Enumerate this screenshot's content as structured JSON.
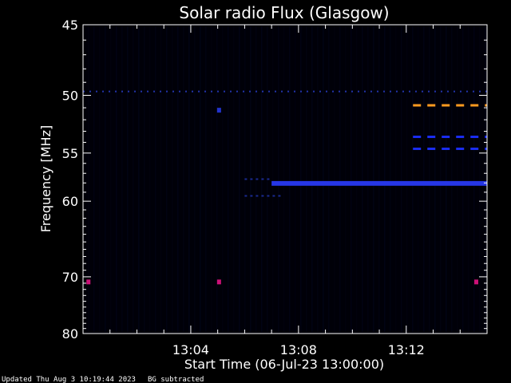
{
  "chart_data": {
    "type": "heatmap",
    "title": "Solar radio Flux (Glasgow)",
    "xlabel": "Start Time (06-Jul-23 13:00:00)",
    "ylabel": "Frequency [MHz]",
    "x_ticks": [
      "13:04",
      "13:08",
      "13:12"
    ],
    "x_tick_minutes": [
      4,
      8,
      12
    ],
    "xlim_minutes": [
      0,
      15
    ],
    "y_ticks": [
      45,
      50,
      55,
      60,
      70,
      80
    ],
    "ylim": [
      45,
      80
    ],
    "y_scale": "reciprocal",
    "features": [
      {
        "kind": "dotted-line",
        "freq": 49.7,
        "from_min": 0,
        "to_min": 15,
        "color": "#2233aa"
      },
      {
        "kind": "dashed-line",
        "freq": 50.8,
        "from_min": 12.25,
        "to_min": 15,
        "color": "#ff9a1f"
      },
      {
        "kind": "dashed-line",
        "freq": 53.5,
        "from_min": 12.25,
        "to_min": 15,
        "color": "#1a2cf0"
      },
      {
        "kind": "dashed-line",
        "freq": 54.6,
        "from_min": 12.25,
        "to_min": 15,
        "color": "#1a2cf0"
      },
      {
        "kind": "band",
        "freq": 57.8,
        "freq_end": 58.3,
        "from_min": 7.0,
        "to_min": 15,
        "color": "#2a3cff"
      },
      {
        "kind": "faint-line",
        "freq": 59.4,
        "from_min": 6.0,
        "to_min": 7.4,
        "color": "#1a2a90"
      },
      {
        "kind": "faint-line",
        "freq": 57.6,
        "from_min": 6.0,
        "to_min": 7.0,
        "color": "#1a2a90"
      },
      {
        "kind": "dot",
        "freq": 70.8,
        "at_min": 0.2,
        "color": "#cc1177"
      },
      {
        "kind": "dot",
        "freq": 70.8,
        "at_min": 5.05,
        "color": "#cc1177"
      },
      {
        "kind": "dot",
        "freq": 70.8,
        "at_min": 14.6,
        "color": "#cc1177"
      },
      {
        "kind": "dot",
        "freq": 51.2,
        "at_min": 5.05,
        "color": "#2233cc"
      }
    ]
  },
  "footer": {
    "updated": "Updated Thu Aug  3 10:19:44 2023",
    "note": "BG subtracted"
  }
}
